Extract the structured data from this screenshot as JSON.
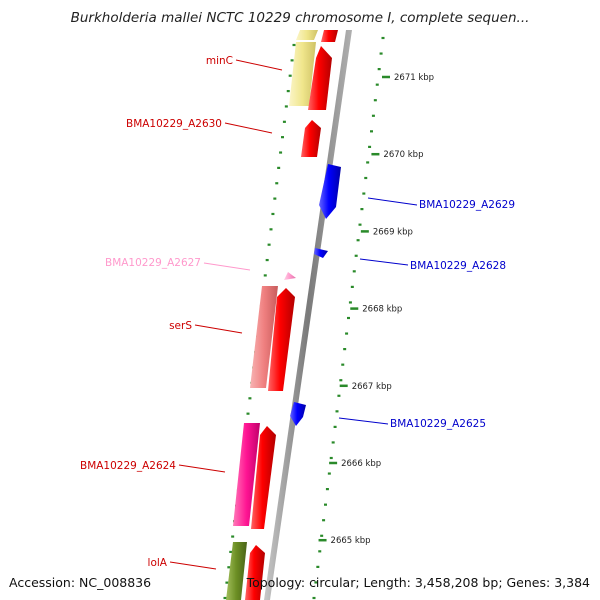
{
  "title": "Burkholderia mallei NCTC 10229 chromosome I, complete sequen...",
  "footer": {
    "accession_label": "Accession:",
    "accession": "NC_008836",
    "topology_label": "Topology:",
    "topology": "circular",
    "length_label": "Length:",
    "length": "3,458,208 bp",
    "genes_label": "Genes:",
    "genes": "3,384"
  },
  "colors": {
    "backbone": "#8a8a8a",
    "tick": "#2a8a2a",
    "cds_red": "#ff0000",
    "cds_blue": "#0000ff",
    "trna_pink": "#ff99cc",
    "rrna_salmon": "#f08080",
    "magenta": "#ff1493",
    "yellow": "#f0e68c",
    "olive": "#6b8e23"
  },
  "scale_labels": [
    {
      "kbp": 2671,
      "label": "2671 kbp"
    },
    {
      "kbp": 2670,
      "label": "2670 kbp"
    },
    {
      "kbp": 2669,
      "label": "2669 kbp"
    },
    {
      "kbp": 2668,
      "label": "2668 kbp"
    },
    {
      "kbp": 2667,
      "label": "2667 kbp"
    },
    {
      "kbp": 2666,
      "label": "2666 kbp"
    },
    {
      "kbp": 2665,
      "label": "2665 kbp"
    }
  ],
  "gene_labels": [
    {
      "name": "minC",
      "color": "#cc0000",
      "side": "left"
    },
    {
      "name": "BMA10229_A2630",
      "color": "#cc0000",
      "side": "left"
    },
    {
      "name": "BMA10229_A2629",
      "color": "#0000cc",
      "side": "right"
    },
    {
      "name": "BMA10229_A2628",
      "color": "#0000cc",
      "side": "right"
    },
    {
      "name": "BMA10229_A2627",
      "color": "#ff99cc",
      "side": "left"
    },
    {
      "name": "serS",
      "color": "#cc0000",
      "side": "left"
    },
    {
      "name": "BMA10229_A2625",
      "color": "#0000cc",
      "side": "right"
    },
    {
      "name": "BMA10229_A2624",
      "color": "#cc0000",
      "side": "left"
    },
    {
      "name": "lolA",
      "color": "#cc0000",
      "side": "left"
    }
  ],
  "features": [
    {
      "id": "top-red",
      "color": "#ff0000",
      "strand": "outer",
      "type": "cds",
      "direction": "none"
    },
    {
      "id": "top-yellow",
      "color": "#f0e68c",
      "strand": "outer2",
      "type": "cds",
      "direction": "none"
    },
    {
      "id": "minC-red",
      "color": "#ff0000",
      "strand": "outer",
      "type": "cds",
      "direction": "up"
    },
    {
      "id": "minC-yellow",
      "color": "#f0e68c",
      "strand": "outer2",
      "type": "cds",
      "direction": "none"
    },
    {
      "id": "A2630-red",
      "color": "#ff0000",
      "strand": "outer",
      "type": "cds",
      "direction": "up"
    },
    {
      "id": "A2629-blue",
      "color": "#0000ff",
      "strand": "inner",
      "type": "cds",
      "direction": "down"
    },
    {
      "id": "A2628-blue",
      "color": "#0000ff",
      "strand": "inner",
      "type": "cds",
      "direction": "down"
    },
    {
      "id": "A2627-pink",
      "color": "#ff99cc",
      "strand": "outer",
      "type": "trna",
      "direction": "up"
    },
    {
      "id": "serS-red",
      "color": "#ff0000",
      "strand": "outer",
      "type": "cds",
      "direction": "up"
    },
    {
      "id": "serS-salmon",
      "color": "#f08080",
      "strand": "outer2",
      "type": "cds",
      "direction": "none"
    },
    {
      "id": "A2625-blue",
      "color": "#0000ff",
      "strand": "inner",
      "type": "cds",
      "direction": "down"
    },
    {
      "id": "A2624-red",
      "color": "#ff0000",
      "strand": "outer",
      "type": "cds",
      "direction": "up"
    },
    {
      "id": "A2624-magenta",
      "color": "#ff1493",
      "strand": "outer2",
      "type": "cds",
      "direction": "none"
    },
    {
      "id": "lolA-red",
      "color": "#ff0000",
      "strand": "outer",
      "type": "cds",
      "direction": "up"
    },
    {
      "id": "lolA-olive",
      "color": "#6b8e23",
      "strand": "outer2",
      "type": "cds",
      "direction": "none"
    }
  ]
}
